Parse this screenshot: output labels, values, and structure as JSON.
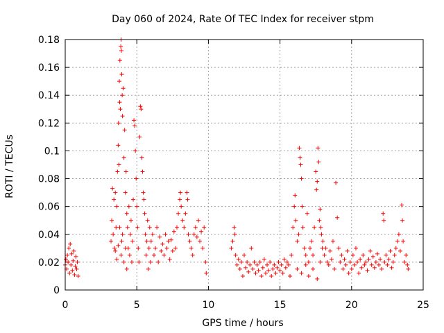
{
  "chart_data": {
    "type": "scatter",
    "title": "Day 060 of 2024, Rate Of TEC Index for receiver stpm",
    "xlabel": "GPS time / hours",
    "ylabel": "ROTI / TECUs",
    "xlim": [
      0,
      25
    ],
    "ylim": [
      0,
      0.18
    ],
    "xticks": [
      0,
      5,
      10,
      15,
      20,
      25
    ],
    "xtick_labels": [
      "0",
      "5",
      "10",
      "15",
      "20",
      "25"
    ],
    "yticks": [
      0,
      0.02,
      0.04,
      0.06,
      0.08,
      0.1,
      0.12,
      0.14,
      0.16,
      0.18
    ],
    "ytick_labels": [
      "0",
      "0.02",
      "0.04",
      "0.06",
      "0.08",
      "0.1",
      "0.12",
      "0.14",
      "0.16",
      "0.18"
    ],
    "grid": true,
    "marker": "+",
    "color": "#ff0000",
    "series": [
      {
        "name": "ROTI",
        "points": [
          [
            0.0,
            0.018
          ],
          [
            0.05,
            0.022
          ],
          [
            0.1,
            0.015
          ],
          [
            0.15,
            0.025
          ],
          [
            0.2,
            0.02
          ],
          [
            0.25,
            0.03
          ],
          [
            0.3,
            0.012
          ],
          [
            0.35,
            0.033
          ],
          [
            0.4,
            0.018
          ],
          [
            0.45,
            0.026
          ],
          [
            0.5,
            0.014
          ],
          [
            0.55,
            0.021
          ],
          [
            0.6,
            0.028
          ],
          [
            0.65,
            0.011
          ],
          [
            0.7,
            0.017
          ],
          [
            0.75,
            0.024
          ],
          [
            0.8,
            0.015
          ],
          [
            0.85,
            0.02
          ],
          [
            0.9,
            0.01
          ],
          [
            3.2,
            0.035
          ],
          [
            3.25,
            0.05
          ],
          [
            3.3,
            0.073
          ],
          [
            3.35,
            0.04
          ],
          [
            3.4,
            0.065
          ],
          [
            3.45,
            0.03
          ],
          [
            3.5,
            0.07
          ],
          [
            3.55,
            0.045
          ],
          [
            3.6,
            0.06
          ],
          [
            3.65,
            0.085
          ],
          [
            3.7,
            0.104
          ],
          [
            3.72,
            0.12
          ],
          [
            3.75,
            0.09
          ],
          [
            3.78,
            0.15
          ],
          [
            3.8,
            0.135
          ],
          [
            3.82,
            0.165
          ],
          [
            3.85,
            0.13
          ],
          [
            3.88,
            0.175
          ],
          [
            3.9,
            0.18
          ],
          [
            3.92,
            0.172
          ],
          [
            3.95,
            0.155
          ],
          [
            3.98,
            0.14
          ],
          [
            4.0,
            0.125
          ],
          [
            4.05,
            0.145
          ],
          [
            4.1,
            0.095
          ],
          [
            4.15,
            0.115
          ],
          [
            4.2,
            0.07
          ],
          [
            4.25,
            0.085
          ],
          [
            4.3,
            0.055
          ],
          [
            4.35,
            0.045
          ],
          [
            4.4,
            0.03
          ],
          [
            4.45,
            0.06
          ],
          [
            4.5,
            0.025
          ],
          [
            4.55,
            0.04
          ],
          [
            4.6,
            0.05
          ],
          [
            4.65,
            0.02
          ],
          [
            4.7,
            0.035
          ],
          [
            4.75,
            0.065
          ],
          [
            3.9,
            0.025
          ],
          [
            3.95,
            0.035
          ],
          [
            4.0,
            0.04
          ],
          [
            4.1,
            0.02
          ],
          [
            4.2,
            0.03
          ],
          [
            4.3,
            0.015
          ],
          [
            3.6,
            0.022
          ],
          [
            3.7,
            0.032
          ],
          [
            3.8,
            0.045
          ],
          [
            3.5,
            0.028
          ],
          [
            4.8,
            0.122
          ],
          [
            4.85,
            0.118
          ],
          [
            4.9,
            0.1
          ],
          [
            4.95,
            0.08
          ],
          [
            5.0,
            0.06
          ],
          [
            5.05,
            0.045
          ],
          [
            5.1,
            0.03
          ],
          [
            5.15,
            0.02
          ],
          [
            5.2,
            0.11
          ],
          [
            5.25,
            0.132
          ],
          [
            5.3,
            0.13
          ],
          [
            5.35,
            0.095
          ],
          [
            5.4,
            0.085
          ],
          [
            5.45,
            0.07
          ],
          [
            5.5,
            0.065
          ],
          [
            5.55,
            0.055
          ],
          [
            5.6,
            0.04
          ],
          [
            5.65,
            0.025
          ],
          [
            5.7,
            0.035
          ],
          [
            5.75,
            0.05
          ],
          [
            5.8,
            0.015
          ],
          [
            5.85,
            0.03
          ],
          [
            5.9,
            0.045
          ],
          [
            5.95,
            0.02
          ],
          [
            6.0,
            0.035
          ],
          [
            6.1,
            0.04
          ],
          [
            6.2,
            0.025
          ],
          [
            6.3,
            0.03
          ],
          [
            6.4,
            0.045
          ],
          [
            6.5,
            0.02
          ],
          [
            6.6,
            0.038
          ],
          [
            6.7,
            0.028
          ],
          [
            6.8,
            0.033
          ],
          [
            6.9,
            0.025
          ],
          [
            7.0,
            0.04
          ],
          [
            7.1,
            0.03
          ],
          [
            7.2,
            0.035
          ],
          [
            7.3,
            0.022
          ],
          [
            7.4,
            0.036
          ],
          [
            7.5,
            0.028
          ],
          [
            7.6,
            0.042
          ],
          [
            7.7,
            0.03
          ],
          [
            7.8,
            0.045
          ],
          [
            7.9,
            0.055
          ],
          [
            8.0,
            0.065
          ],
          [
            8.05,
            0.07
          ],
          [
            8.1,
            0.06
          ],
          [
            8.2,
            0.05
          ],
          [
            8.3,
            0.045
          ],
          [
            8.4,
            0.055
          ],
          [
            8.5,
            0.07
          ],
          [
            8.55,
            0.065
          ],
          [
            8.6,
            0.04
          ],
          [
            8.7,
            0.035
          ],
          [
            8.8,
            0.03
          ],
          [
            8.9,
            0.025
          ],
          [
            9.0,
            0.04
          ],
          [
            9.1,
            0.045
          ],
          [
            9.2,
            0.038
          ],
          [
            9.3,
            0.05
          ],
          [
            9.4,
            0.035
          ],
          [
            9.5,
            0.042
          ],
          [
            9.6,
            0.03
          ],
          [
            9.7,
            0.045
          ],
          [
            9.8,
            0.02
          ],
          [
            9.85,
            0.012
          ],
          [
            11.6,
            0.03
          ],
          [
            11.7,
            0.035
          ],
          [
            11.8,
            0.045
          ],
          [
            11.85,
            0.04
          ],
          [
            11.9,
            0.025
          ],
          [
            12.0,
            0.018
          ],
          [
            12.1,
            0.022
          ],
          [
            12.2,
            0.015
          ],
          [
            12.3,
            0.02
          ],
          [
            12.4,
            0.01
          ],
          [
            12.5,
            0.025
          ],
          [
            12.6,
            0.016
          ],
          [
            12.7,
            0.02
          ],
          [
            12.8,
            0.013
          ],
          [
            12.9,
            0.018
          ],
          [
            13.0,
            0.03
          ],
          [
            13.1,
            0.015
          ],
          [
            13.2,
            0.02
          ],
          [
            13.3,
            0.012
          ],
          [
            13.4,
            0.018
          ],
          [
            13.5,
            0.014
          ],
          [
            13.6,
            0.02
          ],
          [
            13.7,
            0.01
          ],
          [
            13.8,
            0.016
          ],
          [
            13.9,
            0.022
          ],
          [
            14.0,
            0.012
          ],
          [
            14.1,
            0.018
          ],
          [
            14.2,
            0.014
          ],
          [
            14.3,
            0.02
          ],
          [
            14.4,
            0.01
          ],
          [
            14.5,
            0.015
          ],
          [
            14.6,
            0.018
          ],
          [
            14.7,
            0.012
          ],
          [
            14.8,
            0.016
          ],
          [
            14.9,
            0.02
          ],
          [
            15.0,
            0.014
          ],
          [
            15.1,
            0.018
          ],
          [
            15.2,
            0.012
          ],
          [
            15.3,
            0.022
          ],
          [
            15.4,
            0.016
          ],
          [
            15.5,
            0.02
          ],
          [
            15.6,
            0.018
          ],
          [
            15.7,
            0.01
          ],
          [
            15.8,
            0.025
          ],
          [
            15.9,
            0.045
          ],
          [
            16.0,
            0.06
          ],
          [
            16.05,
            0.068
          ],
          [
            16.1,
            0.05
          ],
          [
            16.2,
            0.035
          ],
          [
            16.3,
            0.04
          ],
          [
            16.35,
            0.102
          ],
          [
            16.4,
            0.095
          ],
          [
            16.45,
            0.09
          ],
          [
            16.5,
            0.08
          ],
          [
            16.55,
            0.06
          ],
          [
            16.6,
            0.045
          ],
          [
            16.7,
            0.03
          ],
          [
            16.8,
            0.025
          ],
          [
            16.9,
            0.055
          ],
          [
            17.0,
            0.02
          ],
          [
            17.1,
            0.03
          ],
          [
            17.2,
            0.035
          ],
          [
            17.3,
            0.025
          ],
          [
            17.4,
            0.045
          ],
          [
            17.5,
            0.085
          ],
          [
            17.55,
            0.072
          ],
          [
            17.6,
            0.078
          ],
          [
            17.65,
            0.102
          ],
          [
            17.7,
            0.092
          ],
          [
            17.75,
            0.05
          ],
          [
            17.8,
            0.058
          ],
          [
            17.85,
            0.045
          ],
          [
            17.9,
            0.04
          ],
          [
            17.95,
            0.03
          ],
          [
            16.2,
            0.015
          ],
          [
            16.5,
            0.012
          ],
          [
            16.8,
            0.018
          ],
          [
            17.0,
            0.01
          ],
          [
            17.3,
            0.015
          ],
          [
            17.6,
            0.008
          ],
          [
            17.8,
            0.02
          ],
          [
            18.0,
            0.035
          ],
          [
            18.1,
            0.025
          ],
          [
            18.2,
            0.03
          ],
          [
            18.3,
            0.02
          ],
          [
            18.4,
            0.018
          ],
          [
            18.5,
            0.028
          ],
          [
            18.6,
            0.022
          ],
          [
            18.7,
            0.035
          ],
          [
            18.8,
            0.015
          ],
          [
            18.9,
            0.077
          ],
          [
            19.0,
            0.052
          ],
          [
            19.1,
            0.03
          ],
          [
            19.2,
            0.02
          ],
          [
            19.3,
            0.025
          ],
          [
            19.4,
            0.015
          ],
          [
            19.5,
            0.022
          ],
          [
            19.6,
            0.018
          ],
          [
            19.7,
            0.028
          ],
          [
            19.8,
            0.012
          ],
          [
            19.9,
            0.02
          ],
          [
            20.0,
            0.015
          ],
          [
            20.1,
            0.025
          ],
          [
            20.2,
            0.018
          ],
          [
            20.3,
            0.03
          ],
          [
            20.4,
            0.02
          ],
          [
            20.5,
            0.012
          ],
          [
            20.6,
            0.022
          ],
          [
            20.7,
            0.016
          ],
          [
            20.8,
            0.025
          ],
          [
            20.9,
            0.018
          ],
          [
            21.0,
            0.02
          ],
          [
            21.1,
            0.014
          ],
          [
            21.2,
            0.022
          ],
          [
            21.3,
            0.028
          ],
          [
            21.4,
            0.018
          ],
          [
            21.5,
            0.024
          ],
          [
            21.6,
            0.016
          ],
          [
            21.7,
            0.02
          ],
          [
            21.8,
            0.026
          ],
          [
            21.9,
            0.018
          ],
          [
            22.0,
            0.022
          ],
          [
            22.1,
            0.015
          ],
          [
            22.2,
            0.055
          ],
          [
            22.25,
            0.05
          ],
          [
            22.3,
            0.02
          ],
          [
            22.4,
            0.025
          ],
          [
            22.5,
            0.018
          ],
          [
            22.6,
            0.022
          ],
          [
            22.7,
            0.028
          ],
          [
            22.8,
            0.016
          ],
          [
            22.9,
            0.02
          ],
          [
            23.0,
            0.025
          ],
          [
            23.1,
            0.03
          ],
          [
            23.2,
            0.035
          ],
          [
            23.3,
            0.04
          ],
          [
            23.4,
            0.028
          ],
          [
            23.5,
            0.061
          ],
          [
            23.55,
            0.05
          ],
          [
            23.6,
            0.035
          ],
          [
            23.7,
            0.02
          ],
          [
            23.8,
            0.025
          ],
          [
            23.9,
            0.018
          ],
          [
            23.95,
            0.015
          ]
        ]
      }
    ]
  }
}
